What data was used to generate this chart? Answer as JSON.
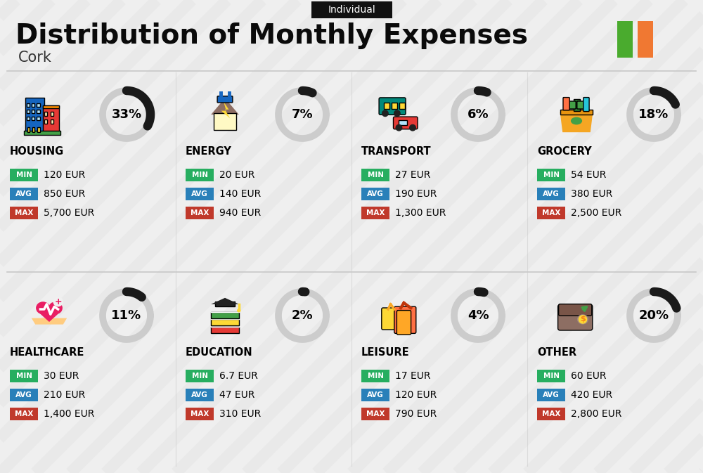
{
  "title": "Distribution of Monthly Expenses",
  "subtitle": "Cork",
  "tag": "Individual",
  "bg_color": "#efefef",
  "categories": [
    {
      "name": "HOUSING",
      "pct": 33,
      "min": "120 EUR",
      "avg": "850 EUR",
      "max": "5,700 EUR",
      "icon": "housing",
      "col": 0,
      "row": 0
    },
    {
      "name": "ENERGY",
      "pct": 7,
      "min": "20 EUR",
      "avg": "140 EUR",
      "max": "940 EUR",
      "icon": "energy",
      "col": 1,
      "row": 0
    },
    {
      "name": "TRANSPORT",
      "pct": 6,
      "min": "27 EUR",
      "avg": "190 EUR",
      "max": "1,300 EUR",
      "icon": "transport",
      "col": 2,
      "row": 0
    },
    {
      "name": "GROCERY",
      "pct": 18,
      "min": "54 EUR",
      "avg": "380 EUR",
      "max": "2,500 EUR",
      "icon": "grocery",
      "col": 3,
      "row": 0
    },
    {
      "name": "HEALTHCARE",
      "pct": 11,
      "min": "30 EUR",
      "avg": "210 EUR",
      "max": "1,400 EUR",
      "icon": "healthcare",
      "col": 0,
      "row": 1
    },
    {
      "name": "EDUCATION",
      "pct": 2,
      "min": "6.7 EUR",
      "avg": "47 EUR",
      "max": "310 EUR",
      "icon": "education",
      "col": 1,
      "row": 1
    },
    {
      "name": "LEISURE",
      "pct": 4,
      "min": "17 EUR",
      "avg": "120 EUR",
      "max": "790 EUR",
      "icon": "leisure",
      "col": 2,
      "row": 1
    },
    {
      "name": "OTHER",
      "pct": 20,
      "min": "60 EUR",
      "avg": "420 EUR",
      "max": "2,800 EUR",
      "icon": "other",
      "col": 3,
      "row": 1
    }
  ],
  "color_min": "#27ae60",
  "color_avg": "#2980b9",
  "color_max": "#c0392b",
  "donut_dark": "#1a1a1a",
  "donut_gray": "#cccccc",
  "ireland_green": "#4aab2e",
  "ireland_orange": "#f07832",
  "stripe_color": "#e0e0e0",
  "sep_color": "#c8c8c8",
  "tag_bg": "#111111",
  "title_color": "#0a0a0a",
  "subtitle_color": "#333333"
}
